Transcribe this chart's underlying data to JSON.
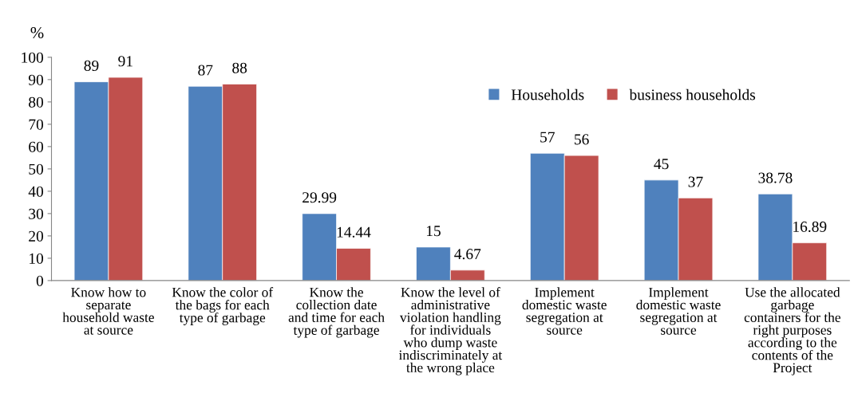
{
  "chart_data": {
    "type": "bar",
    "ylabel": "%",
    "categories": [
      "Know how to\nseparate\nhousehold waste\nat source",
      "Know the color of\nthe bags for each\ntype of garbage",
      "Know the\ncollection date\nand time for each\ntype of garbage",
      "Know the level of\nadministrative\nviolation handling\nfor individuals\nwho dump waste\nindiscriminately at\nthe wrong place",
      "Implement\ndomestic waste\nsegregation at\nsource",
      "Implement\ndomestic waste\nsegregation at\nsource",
      "Use the allocated\ngarbage\ncontainers for the\nright purposes\naccording to the\ncontents of the\nProject"
    ],
    "series": [
      {
        "name": "Households",
        "color": "#4f81bd",
        "values": [
          89,
          87,
          29.99,
          15,
          57,
          45,
          38.78
        ]
      },
      {
        "name": "business households",
        "color": "#c0504d",
        "values": [
          91,
          88,
          14.44,
          4.67,
          56,
          37,
          16.89
        ]
      }
    ],
    "ylim": [
      0,
      100
    ],
    "yticks": [
      0,
      10,
      20,
      30,
      40,
      50,
      60,
      70,
      80,
      90,
      100
    ],
    "data_labels": true,
    "legend": "top right",
    "grid": false
  }
}
